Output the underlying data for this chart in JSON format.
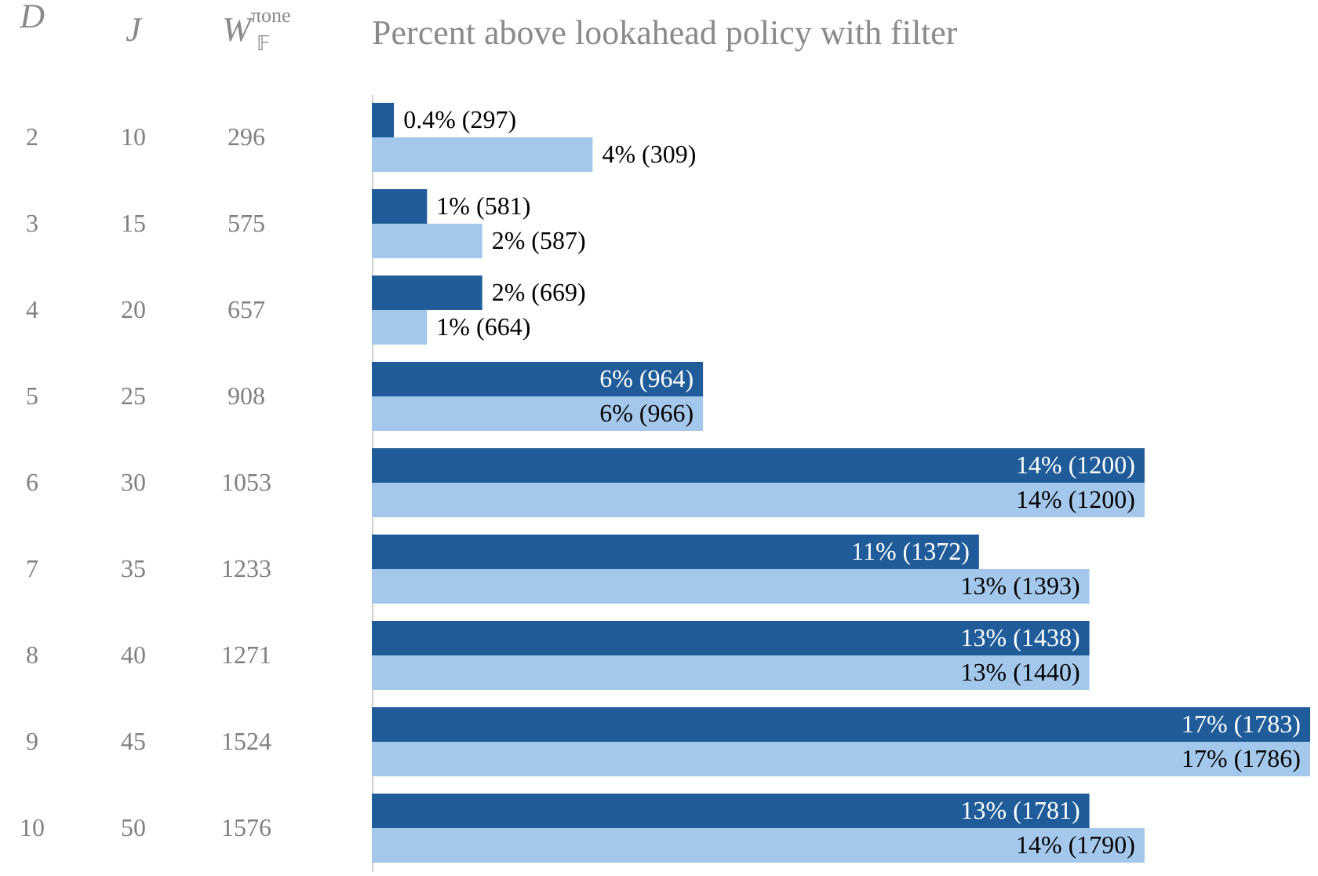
{
  "chart_data": {
    "type": "bar",
    "orientation": "horizontal",
    "title": "Percent above lookahead policy with filter",
    "ylabel": "D",
    "categories": [
      "2",
      "3",
      "4",
      "5",
      "6",
      "7",
      "8",
      "9",
      "10"
    ],
    "series": [
      {
        "color": "#1f5c99",
        "values": [
          0.4,
          1,
          2,
          6,
          14,
          11,
          13,
          17,
          13
        ],
        "value_labels": [
          "0.4%  (297)",
          "1%  (581)",
          "2%  (669)",
          "6%  (964)",
          "14%  (1200)",
          "11%  (1372)",
          "13%  (1438)",
          "17%  (1783)",
          "13%  (1781)"
        ]
      },
      {
        "color": "#a4c8ec",
        "values": [
          4,
          2,
          1,
          6,
          14,
          13,
          13,
          17,
          14
        ],
        "value_labels": [
          "4%  (309)",
          "2%  (587)",
          "1%  (664)",
          "6%  (966)",
          "14%  (1200)",
          "13%  (1393)",
          "13%  (1440)",
          "17%  (1786)",
          "14%  (1790)"
        ]
      }
    ],
    "annotations": [
      "J",
      "W$^{πone}$$_{𝔽}$",
      "10",
      "296",
      "15",
      "575",
      "20",
      "657",
      "25",
      "908",
      "30",
      "1053",
      "35",
      "1233",
      "40",
      "1271",
      "45",
      "1524",
      "50",
      "1576"
    ]
  }
}
